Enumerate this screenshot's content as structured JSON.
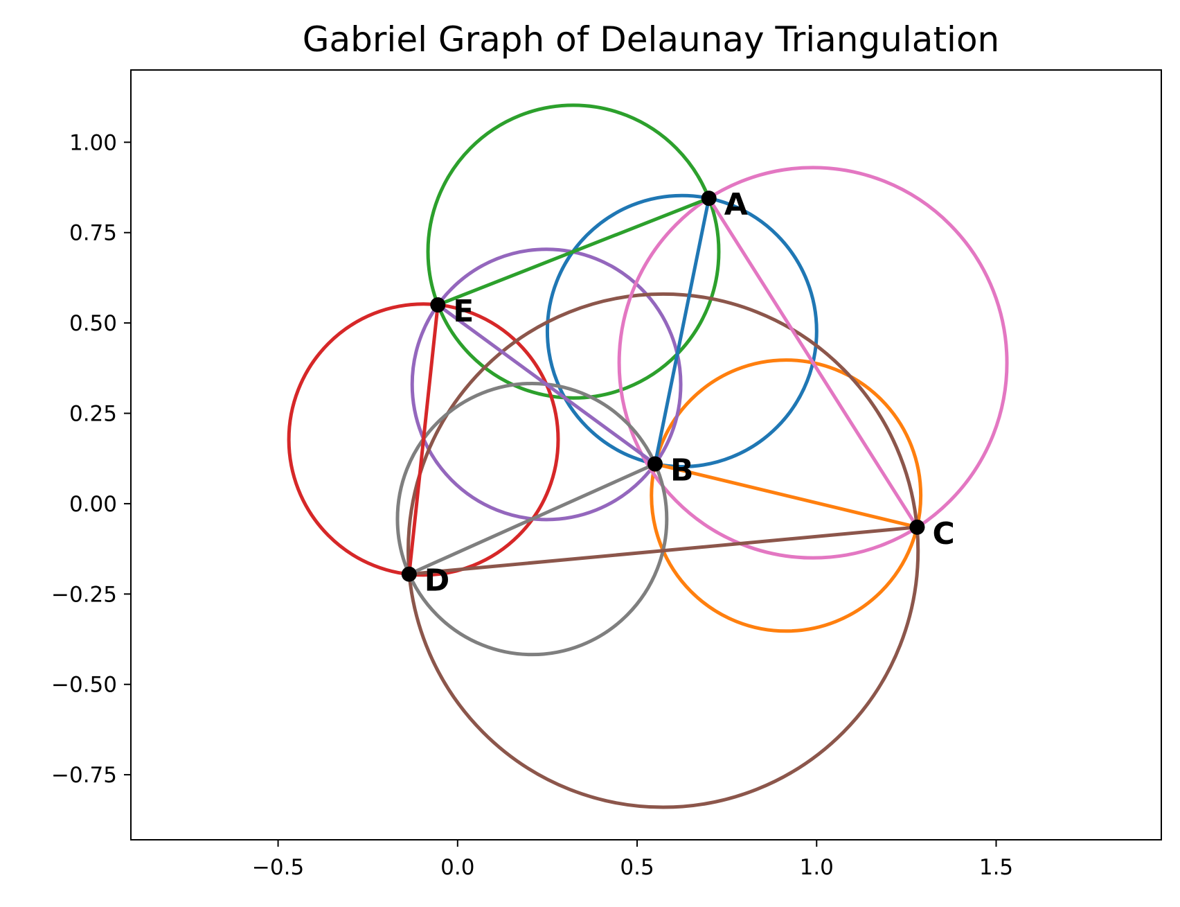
{
  "chart_data": {
    "type": "scatter",
    "title": "Gabriel Graph of Delaunay Triangulation",
    "xlabel": "",
    "ylabel": "",
    "xlim": [
      -0.91,
      1.96
    ],
    "ylim": [
      -0.93,
      1.2
    ],
    "grid": false,
    "x_ticks": [
      -0.5,
      0.0,
      0.5,
      1.0,
      1.5
    ],
    "x_tick_labels": [
      "−0.5",
      "0.0",
      "0.5",
      "1.0",
      "1.5"
    ],
    "y_ticks": [
      -0.75,
      -0.5,
      -0.25,
      0.0,
      0.25,
      0.5,
      0.75,
      1.0
    ],
    "y_tick_labels": [
      "−0.75",
      "−0.50",
      "−0.25",
      "0.00",
      "0.25",
      "0.50",
      "0.75",
      "1.00"
    ],
    "points": [
      {
        "label": "A",
        "x": 0.7,
        "y": 0.845
      },
      {
        "label": "B",
        "x": 0.55,
        "y": 0.11
      },
      {
        "label": "C",
        "x": 1.28,
        "y": -0.065
      },
      {
        "label": "D",
        "x": -0.135,
        "y": -0.195
      },
      {
        "label": "E",
        "x": -0.055,
        "y": 0.55
      }
    ],
    "edges": [
      {
        "from": "A",
        "to": "B",
        "color": "#1f77b4",
        "circle": {
          "cx": 0.625,
          "cy": 0.4775,
          "r": 0.375
        }
      },
      {
        "from": "B",
        "to": "C",
        "color": "#ff7f0e",
        "circle": {
          "cx": 0.915,
          "cy": 0.0225,
          "r": 0.375
        }
      },
      {
        "from": "A",
        "to": "E",
        "color": "#2ca02c",
        "circle": {
          "cx": 0.3225,
          "cy": 0.6975,
          "r": 0.405
        }
      },
      {
        "from": "D",
        "to": "E",
        "color": "#d62728",
        "circle": {
          "cx": -0.095,
          "cy": 0.1775,
          "r": 0.375
        }
      },
      {
        "from": "B",
        "to": "E",
        "color": "#9467bd",
        "circle": {
          "cx": 0.2475,
          "cy": 0.33,
          "r": 0.374
        }
      },
      {
        "from": "C",
        "to": "D",
        "color": "#8c564b",
        "circle": {
          "cx": 0.5725,
          "cy": -0.13,
          "r": 0.71
        }
      },
      {
        "from": "A",
        "to": "C",
        "color": "#e377c2",
        "circle": {
          "cx": 0.99,
          "cy": 0.39,
          "r": 0.54
        }
      },
      {
        "from": "B",
        "to": "D",
        "color": "#7f7f7f",
        "circle": {
          "cx": 0.2075,
          "cy": -0.0425,
          "r": 0.375
        }
      }
    ]
  }
}
